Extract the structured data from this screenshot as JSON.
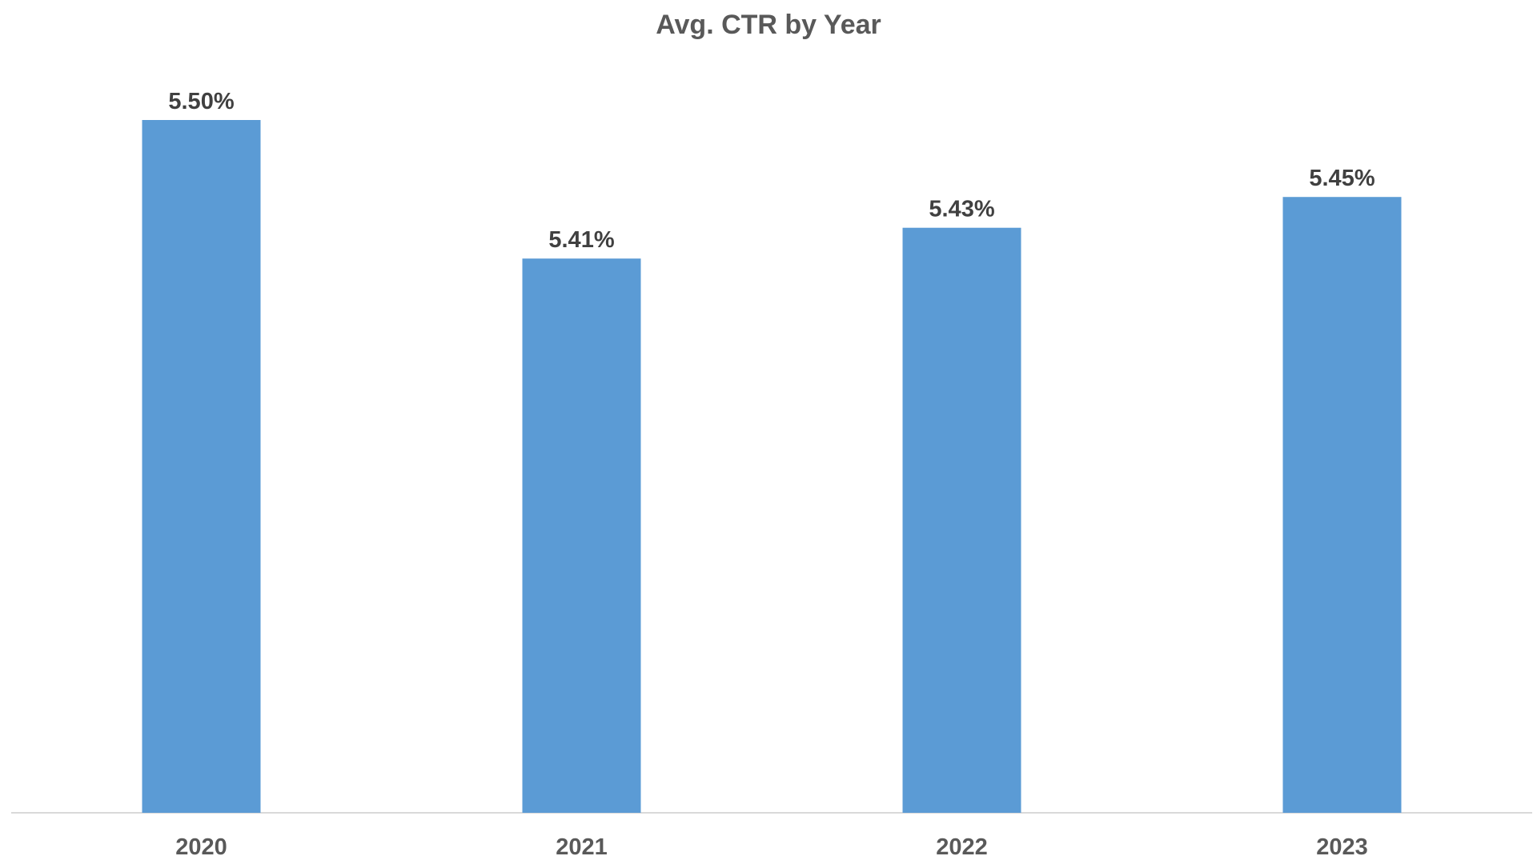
{
  "chart_data": {
    "type": "bar",
    "title": "Avg. CTR by Year",
    "categories": [
      "2020",
      "2021",
      "2022",
      "2023"
    ],
    "values": [
      5.5,
      5.41,
      5.43,
      5.45
    ],
    "data_labels": [
      "5.50%",
      "5.41%",
      "5.43%",
      "5.45%"
    ],
    "xlabel": "",
    "ylabel": "",
    "ylim": [
      5.05,
      5.5
    ],
    "bar_color": "#5B9BD5",
    "axis_color": "#D9D9D9",
    "grid": false,
    "legend": "none"
  }
}
